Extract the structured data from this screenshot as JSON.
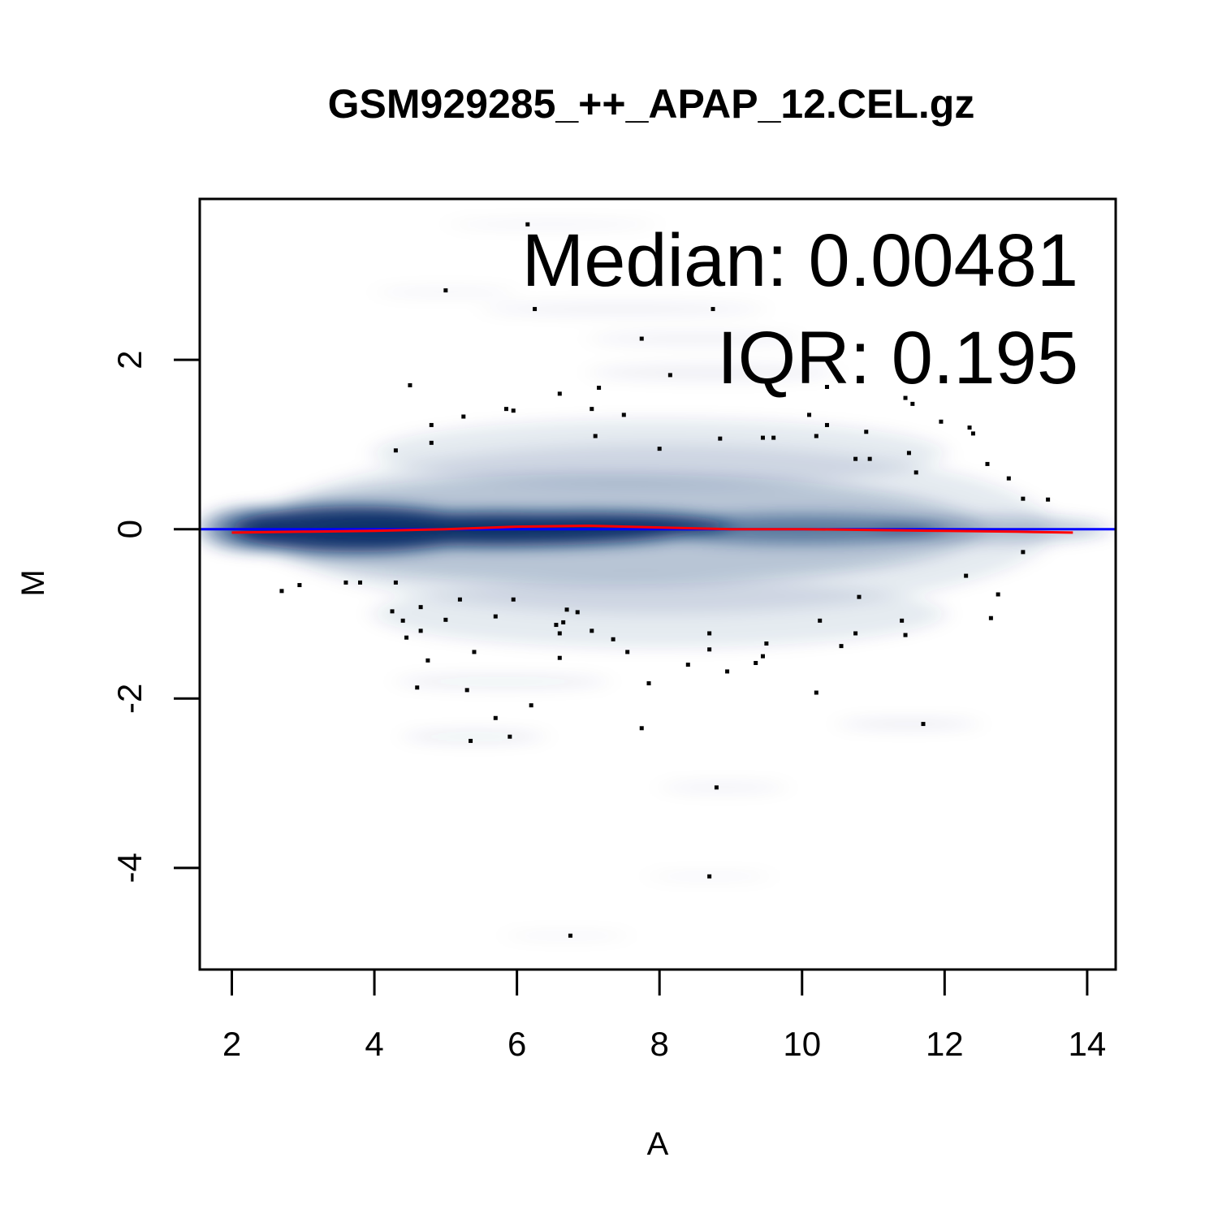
{
  "chart_data": {
    "type": "scatter",
    "title": "GSM929285_++_APAP_12.CEL.gz",
    "xlabel": "A",
    "ylabel": "M",
    "xlim": [
      1.55,
      14.4
    ],
    "ylim": [
      -5.2,
      3.9
    ],
    "x_ticks": [
      2,
      4,
      6,
      8,
      10,
      12,
      14
    ],
    "y_ticks": [
      -4,
      -2,
      0,
      2
    ],
    "grid": false,
    "density_color": "#08306b",
    "reference_line": {
      "y": 0,
      "color": "#0000ff"
    },
    "loess_line": {
      "color": "#ff0000",
      "x": [
        2.0,
        3.0,
        4.0,
        5.0,
        6.0,
        7.0,
        8.0,
        9.0,
        10.0,
        11.0,
        12.0,
        13.0,
        13.8
      ],
      "y": [
        -0.04,
        -0.03,
        -0.02,
        0.0,
        0.03,
        0.04,
        0.02,
        0.0,
        0.0,
        -0.01,
        -0.02,
        -0.03,
        -0.04
      ]
    },
    "annotations": {
      "median": "Median: 0.00481",
      "iqr": "IQR: 0.195"
    },
    "density_bands": [
      {
        "x1": 1.6,
        "x2": 3.0,
        "y": 0.0,
        "h": 0.5,
        "o": 0.55
      },
      {
        "x1": 2.0,
        "x2": 5.5,
        "y": 0.0,
        "h": 0.55,
        "o": 0.95
      },
      {
        "x1": 3.0,
        "x2": 8.5,
        "y": 0.0,
        "h": 0.4,
        "o": 1.0
      },
      {
        "x1": 5.0,
        "x2": 9.0,
        "y": 0.05,
        "h": 0.3,
        "o": 1.0
      },
      {
        "x1": 8.0,
        "x2": 12.0,
        "y": 0.0,
        "h": 0.35,
        "o": 0.5
      },
      {
        "x1": 11.0,
        "x2": 14.3,
        "y": 0.0,
        "h": 0.3,
        "o": 0.25
      },
      {
        "x1": 2.0,
        "x2": 12.5,
        "y": 0.0,
        "h": 1.3,
        "o": 0.2
      },
      {
        "x1": 2.5,
        "x2": 13.5,
        "y": 0.0,
        "h": 2.0,
        "o": 0.1
      },
      {
        "x1": 4.0,
        "x2": 12.0,
        "y": 0.9,
        "h": 0.8,
        "o": 0.1
      },
      {
        "x1": 4.0,
        "x2": 12.0,
        "y": -1.0,
        "h": 0.8,
        "o": 0.1
      },
      {
        "x1": 4.3,
        "x2": 7.3,
        "y": -1.8,
        "h": 0.15,
        "o": 0.08
      },
      {
        "x1": 4.4,
        "x2": 6.4,
        "y": -2.45,
        "h": 0.15,
        "o": 0.08
      },
      {
        "x1": 10.5,
        "x2": 12.5,
        "y": -2.3,
        "h": 0.12,
        "o": 0.08
      },
      {
        "x1": 8.0,
        "x2": 9.8,
        "y": -3.05,
        "h": 0.12,
        "o": 0.06
      },
      {
        "x1": 7.8,
        "x2": 9.6,
        "y": -4.1,
        "h": 0.08,
        "o": 0.05
      },
      {
        "x1": 5.8,
        "x2": 7.6,
        "y": -4.8,
        "h": 0.08,
        "o": 0.05
      },
      {
        "x1": 5.0,
        "x2": 8.0,
        "y": 3.6,
        "h": 0.1,
        "o": 0.05
      },
      {
        "x1": 4.0,
        "x2": 6.0,
        "y": 2.8,
        "h": 0.1,
        "o": 0.05
      },
      {
        "x1": 5.5,
        "x2": 9.5,
        "y": 2.6,
        "h": 0.15,
        "o": 0.06
      },
      {
        "x1": 7.0,
        "x2": 10.0,
        "y": 2.25,
        "h": 0.15,
        "o": 0.06
      },
      {
        "x1": 7.0,
        "x2": 10.5,
        "y": 1.85,
        "h": 0.2,
        "o": 0.06
      }
    ],
    "outliers": [
      [
        6.15,
        3.6
      ],
      [
        5.0,
        2.82
      ],
      [
        6.25,
        2.6
      ],
      [
        8.75,
        2.6
      ],
      [
        7.75,
        2.25
      ],
      [
        8.15,
        1.82
      ],
      [
        4.5,
        1.7
      ],
      [
        7.15,
        1.67
      ],
      [
        6.6,
        1.6
      ],
      [
        10.35,
        1.68
      ],
      [
        11.45,
        1.55
      ],
      [
        11.55,
        1.48
      ],
      [
        5.85,
        1.42
      ],
      [
        5.95,
        1.4
      ],
      [
        7.05,
        1.42
      ],
      [
        5.25,
        1.33
      ],
      [
        7.5,
        1.35
      ],
      [
        10.1,
        1.35
      ],
      [
        4.8,
        1.23
      ],
      [
        10.35,
        1.23
      ],
      [
        11.95,
        1.27
      ],
      [
        12.35,
        1.2
      ],
      [
        12.4,
        1.13
      ],
      [
        10.9,
        1.15
      ],
      [
        4.8,
        1.02
      ],
      [
        7.1,
        1.1
      ],
      [
        8.85,
        1.07
      ],
      [
        9.45,
        1.08
      ],
      [
        9.6,
        1.08
      ],
      [
        10.2,
        1.1
      ],
      [
        4.3,
        0.93
      ],
      [
        8.0,
        0.95
      ],
      [
        11.5,
        0.9
      ],
      [
        10.75,
        0.83
      ],
      [
        10.95,
        0.83
      ],
      [
        12.6,
        0.77
      ],
      [
        11.6,
        0.67
      ],
      [
        12.9,
        0.6
      ],
      [
        13.1,
        0.36
      ],
      [
        13.45,
        0.35
      ],
      [
        13.1,
        -0.27
      ],
      [
        2.7,
        -0.73
      ],
      [
        2.95,
        -0.66
      ],
      [
        3.6,
        -0.63
      ],
      [
        3.8,
        -0.63
      ],
      [
        4.3,
        -0.63
      ],
      [
        12.3,
        -0.55
      ],
      [
        5.2,
        -0.83
      ],
      [
        5.95,
        -0.83
      ],
      [
        10.8,
        -0.8
      ],
      [
        12.75,
        -0.77
      ],
      [
        4.25,
        -0.97
      ],
      [
        4.65,
        -0.92
      ],
      [
        6.7,
        -0.95
      ],
      [
        6.85,
        -0.98
      ],
      [
        5.0,
        -1.07
      ],
      [
        5.7,
        -1.03
      ],
      [
        4.4,
        -1.08
      ],
      [
        6.55,
        -1.13
      ],
      [
        6.65,
        -1.1
      ],
      [
        7.05,
        -1.2
      ],
      [
        10.25,
        -1.08
      ],
      [
        11.4,
        -1.08
      ],
      [
        12.65,
        -1.05
      ],
      [
        4.65,
        -1.2
      ],
      [
        4.45,
        -1.28
      ],
      [
        6.6,
        -1.23
      ],
      [
        8.7,
        -1.23
      ],
      [
        10.75,
        -1.23
      ],
      [
        11.45,
        -1.25
      ],
      [
        7.35,
        -1.3
      ],
      [
        9.5,
        -1.35
      ],
      [
        10.55,
        -1.38
      ],
      [
        5.4,
        -1.45
      ],
      [
        7.55,
        -1.45
      ],
      [
        8.7,
        -1.42
      ],
      [
        9.45,
        -1.5
      ],
      [
        4.75,
        -1.55
      ],
      [
        6.6,
        -1.52
      ],
      [
        8.4,
        -1.6
      ],
      [
        9.35,
        -1.58
      ],
      [
        8.95,
        -1.68
      ],
      [
        7.85,
        -1.82
      ],
      [
        4.6,
        -1.87
      ],
      [
        5.3,
        -1.9
      ],
      [
        10.2,
        -1.93
      ],
      [
        6.2,
        -2.08
      ],
      [
        5.7,
        -2.23
      ],
      [
        11.7,
        -2.3
      ],
      [
        7.75,
        -2.35
      ],
      [
        5.9,
        -2.45
      ],
      [
        5.35,
        -2.5
      ],
      [
        8.8,
        -3.05
      ],
      [
        8.7,
        -4.1
      ],
      [
        6.75,
        -4.8
      ]
    ]
  }
}
